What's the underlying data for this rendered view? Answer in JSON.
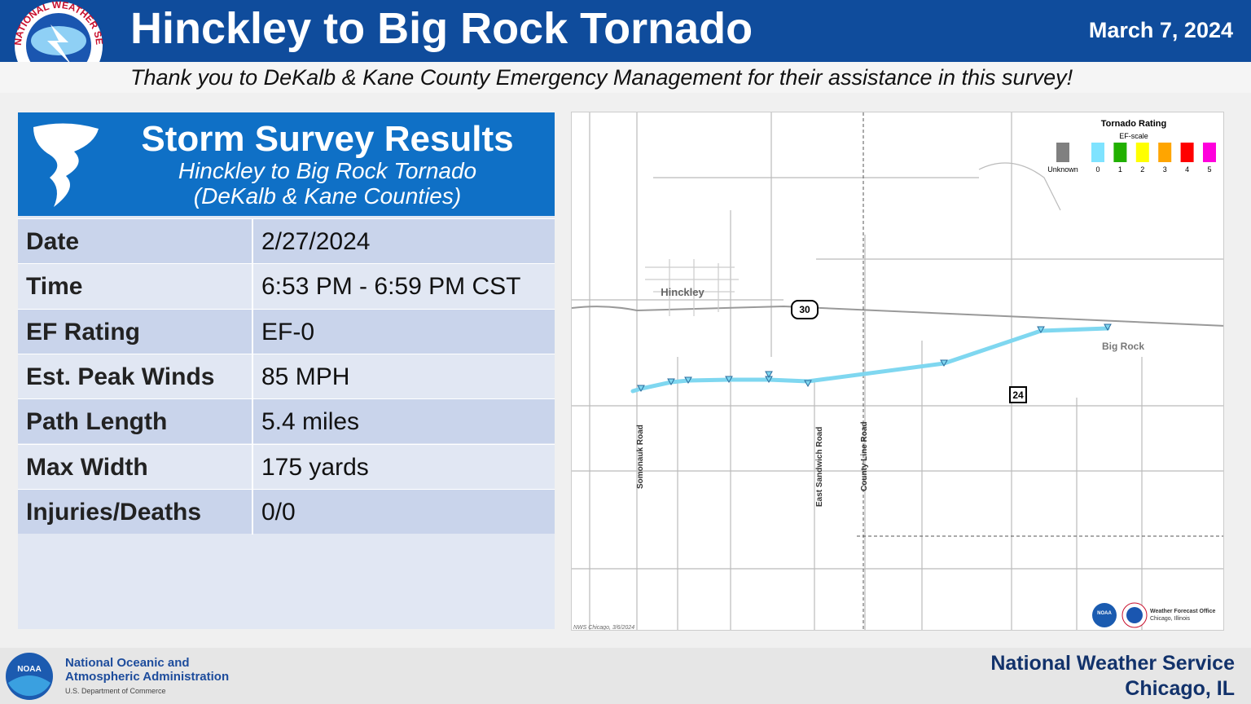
{
  "header": {
    "title": "Hinckley to Big Rock Tornado",
    "date": "March 7, 2024",
    "thanks": "Thank you to DeKalb & Kane County Emergency Management for their assistance in this survey!",
    "logo_text": "NATIONAL WEATHER SERVICE"
  },
  "panel": {
    "title": "Storm Survey Results",
    "subtitle": "Hinckley to Big Rock Tornado",
    "counties": "(DeKalb & Kane Counties)"
  },
  "table": {
    "rows": [
      [
        "Date",
        "2/27/2024"
      ],
      [
        "Time",
        "6:53 PM - 6:59 PM CST"
      ],
      [
        "EF Rating",
        "EF-0"
      ],
      [
        "Est. Peak Winds",
        "85 MPH"
      ],
      [
        "Path Length",
        "5.4 miles"
      ],
      [
        "Max Width",
        "175 yards"
      ],
      [
        "Injuries/Deaths",
        "0/0"
      ]
    ]
  },
  "map": {
    "legend": {
      "title": "Tornado Rating",
      "scale": "EF-scale",
      "items": [
        {
          "label": "Unknown",
          "color": "#808080"
        },
        {
          "label": "0",
          "color": "#7fe3ff"
        },
        {
          "label": "1",
          "color": "#21b000"
        },
        {
          "label": "2",
          "color": "#ffff00"
        },
        {
          "label": "3",
          "color": "#ffa500"
        },
        {
          "label": "4",
          "color": "#ff0000"
        },
        {
          "label": "5",
          "color": "#ff00dc"
        }
      ]
    },
    "places": [
      "Hinckley",
      "Big Rock"
    ],
    "routes": [
      "30",
      "24"
    ],
    "roads": [
      "Somonauk Road",
      "East Sandwich Road",
      "County Line Road"
    ],
    "credit": "NWS Chicago, 3/6/2024",
    "wfo": [
      "Weather Forecast Office",
      "Chicago, Illinois"
    ],
    "noaa_badge": "NOAA"
  },
  "footer": {
    "agency": [
      "National Oceanic and",
      "Atmospheric Administration"
    ],
    "department": "U.S. Department of Commerce",
    "office": [
      "National Weather Service",
      "Chicago, IL"
    ],
    "badge": "NOAA"
  }
}
